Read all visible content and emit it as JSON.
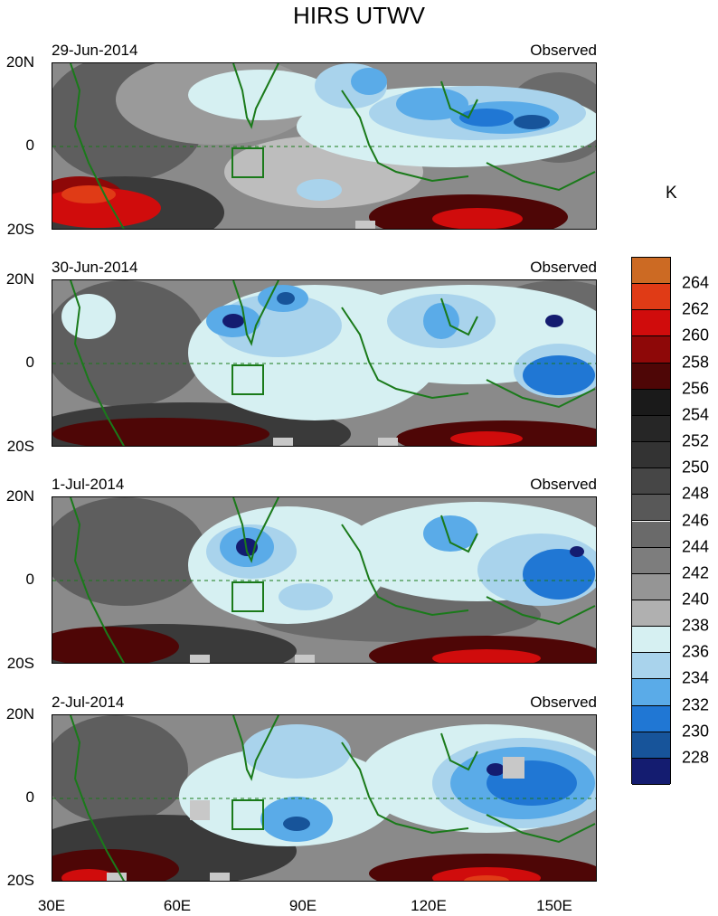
{
  "title": "HIRS UTWV",
  "unit": "K",
  "panels": [
    {
      "date": "29-Jun-2014",
      "label": "Observed"
    },
    {
      "date": "30-Jun-2014",
      "label": "Observed"
    },
    {
      "date": "1-Jul-2014",
      "label": "Observed"
    },
    {
      "date": "2-Jul-2014",
      "label": "Observed"
    }
  ],
  "lat_labels": [
    "20N",
    "0",
    "20S"
  ],
  "lon_labels": [
    "30E",
    "60E",
    "90E",
    "120E",
    "150E"
  ],
  "colorbar": {
    "levels": [
      "264",
      "262",
      "260",
      "258",
      "256",
      "254",
      "252",
      "250",
      "248",
      "246",
      "244",
      "242",
      "240",
      "238",
      "236",
      "234",
      "232",
      "230",
      "228"
    ],
    "colors": [
      "#cc6a23",
      "#e03b16",
      "#d00c0c",
      "#8e0808",
      "#4e0606",
      "#1a1a1a",
      "#262626",
      "#333333",
      "#464646",
      "#585858",
      "#6a6a6a",
      "#7d7d7d",
      "#959595",
      "#b0b0b0",
      "#d6f0f2",
      "#a9d3ec",
      "#5aabe8",
      "#2077d4",
      "#17549a",
      "#141c70"
    ]
  }
}
